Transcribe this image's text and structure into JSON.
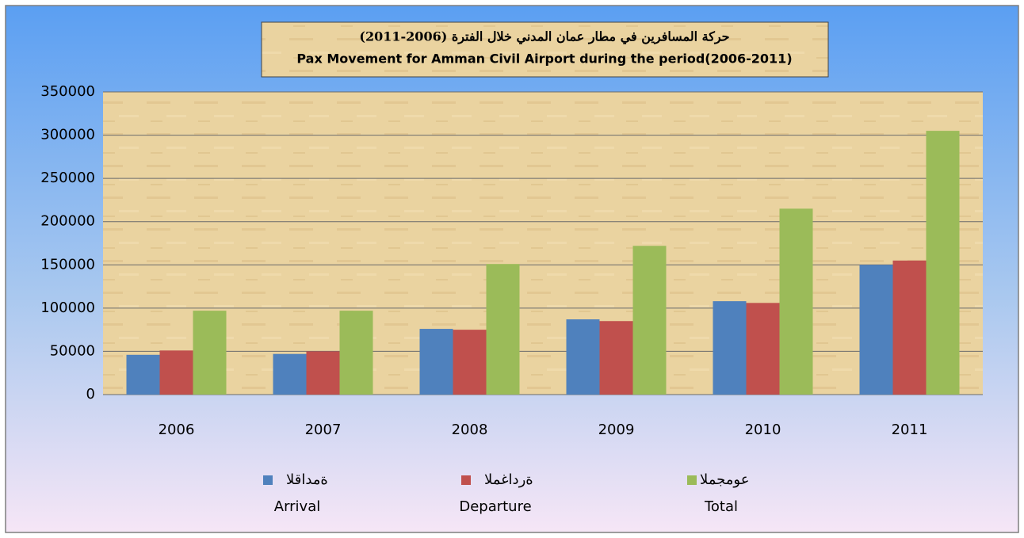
{
  "chart_data": {
    "type": "bar",
    "title_ar": "حركة المسافرين في مطار عمان المدني خلال الفترة (2006-2011)",
    "title": "Pax Movement for Amman Civil Airport during the period(2006-2011)",
    "categories": [
      "2006",
      "2007",
      "2008",
      "2009",
      "2010",
      "2011"
    ],
    "series": [
      {
        "name": "Arrival",
        "name_ar": "القادمة",
        "color": "#4f81bd",
        "values": [
          46000,
          47000,
          76000,
          87000,
          108000,
          150000
        ]
      },
      {
        "name": "Departure",
        "name_ar": "المغادرة",
        "color": "#c0504d",
        "values": [
          51000,
          50000,
          75000,
          85000,
          106000,
          155000
        ]
      },
      {
        "name": "Total",
        "name_ar": "المجموع",
        "color": "#9bbb59",
        "values": [
          97000,
          97000,
          151000,
          172000,
          215000,
          305000
        ]
      }
    ],
    "ylim": [
      0,
      350000
    ],
    "yticks": [
      0,
      50000,
      100000,
      150000,
      200000,
      250000,
      300000,
      350000
    ],
    "grid": true,
    "legend": "bottom"
  }
}
